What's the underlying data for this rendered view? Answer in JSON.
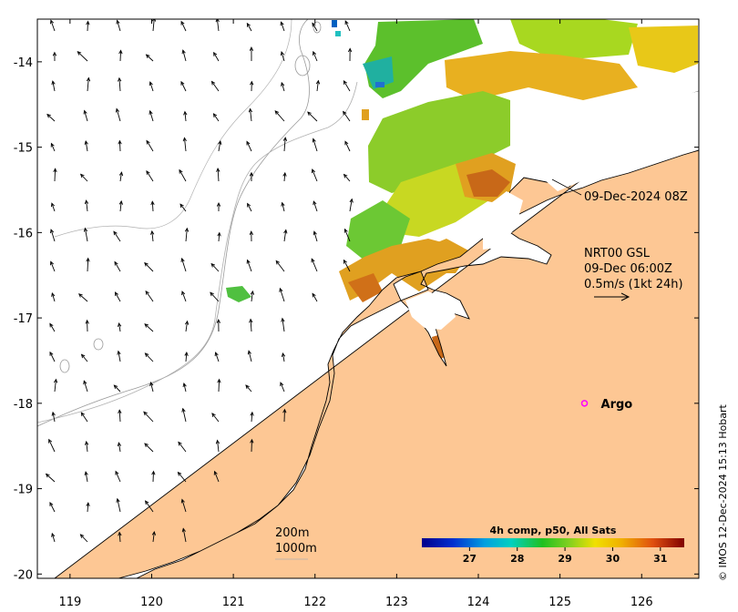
{
  "map": {
    "lon_range": [
      118.6,
      126.7
    ],
    "lat_range": [
      -20.05,
      -13.5
    ],
    "lon_ticks": [
      119,
      120,
      121,
      122,
      123,
      124,
      125,
      126
    ],
    "lat_ticks": [
      -14,
      -15,
      -16,
      -17,
      -18,
      -19,
      -20
    ],
    "colors": {
      "land": "#fdc794",
      "sea": "#ffffff",
      "cloud": "#ffffff",
      "frame": "#000000"
    }
  },
  "annotations": {
    "pass_label": "09-Dec-2024 08Z",
    "current_product": "NRT00 GSL",
    "current_time": "09-Dec 06:00Z",
    "current_scale": "0.5m/s (1kt 24h)",
    "argo_label": "Argo",
    "argo_position": {
      "lon": 125.3,
      "lat": -18.0
    },
    "argo_color": "#ff00ff",
    "isobath_200": "200m",
    "isobath_1000": "1000m"
  },
  "colorbar": {
    "title": "4h comp, p50, All Sats",
    "range": [
      26,
      31.5
    ],
    "tick_labels": [
      "27",
      "28",
      "29",
      "30",
      "31"
    ]
  },
  "credit": "© IMOS 12-Dec-2024 15:13 Hobart"
}
